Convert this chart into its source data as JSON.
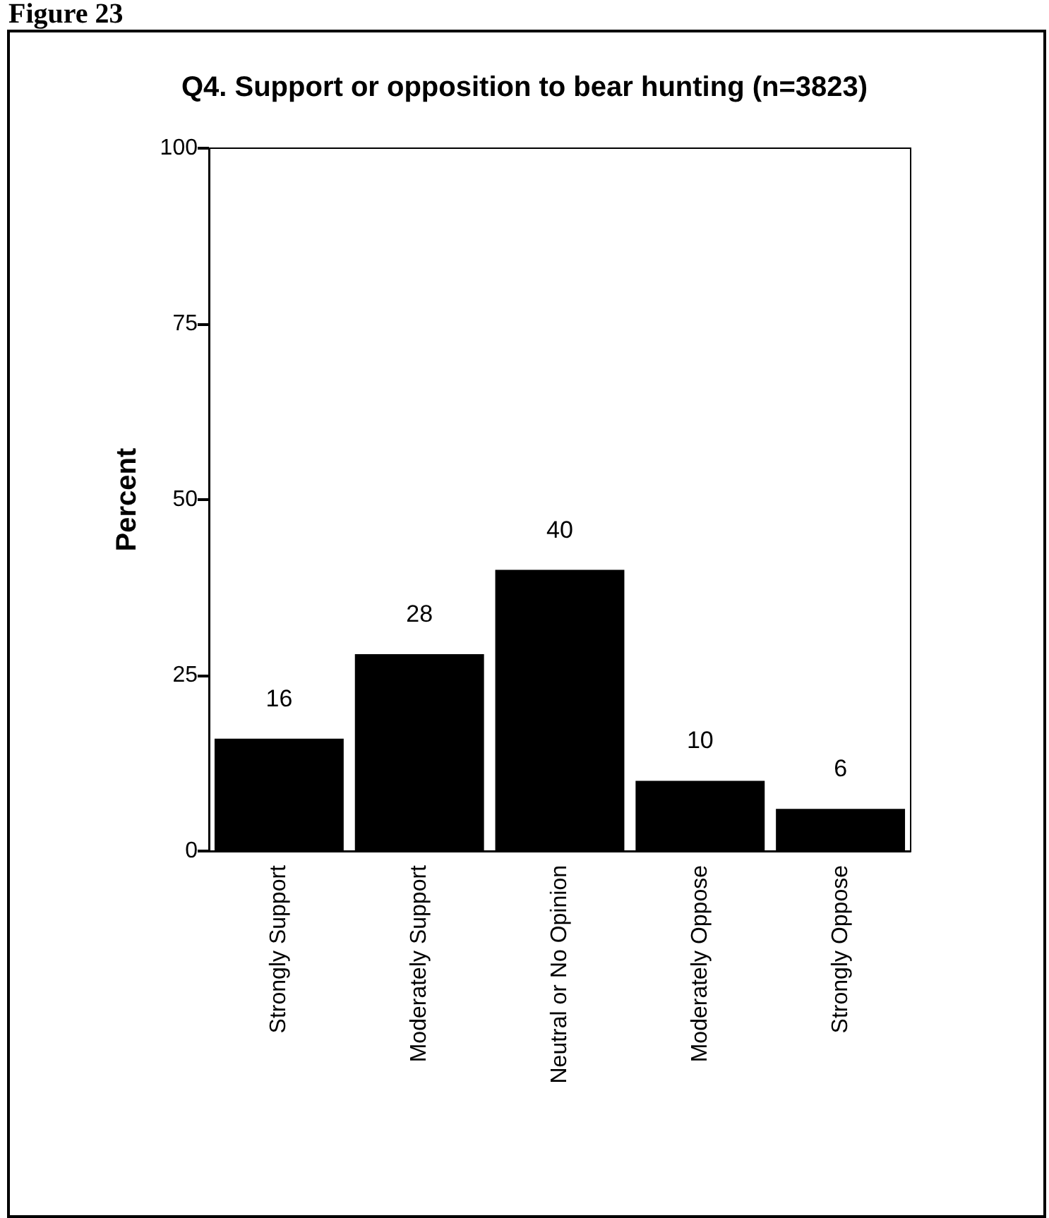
{
  "chart_data": {
    "type": "bar",
    "title": "Q4. Support or opposition to bear hunting (n=3823)",
    "ylabel": "Percent",
    "annotations": [
      "Figure 23"
    ],
    "categories": [
      "Strongly Support",
      "Moderately Support",
      "Neutral or No Opinion",
      "Moderately Oppose",
      "Strongly Oppose"
    ],
    "values": [
      16,
      28,
      40,
      10,
      6
    ],
    "color": "#000000",
    "ylim": [
      0,
      100
    ],
    "yticks": [
      0,
      25,
      50,
      75,
      100
    ],
    "grid": false,
    "data_labels": true
  }
}
